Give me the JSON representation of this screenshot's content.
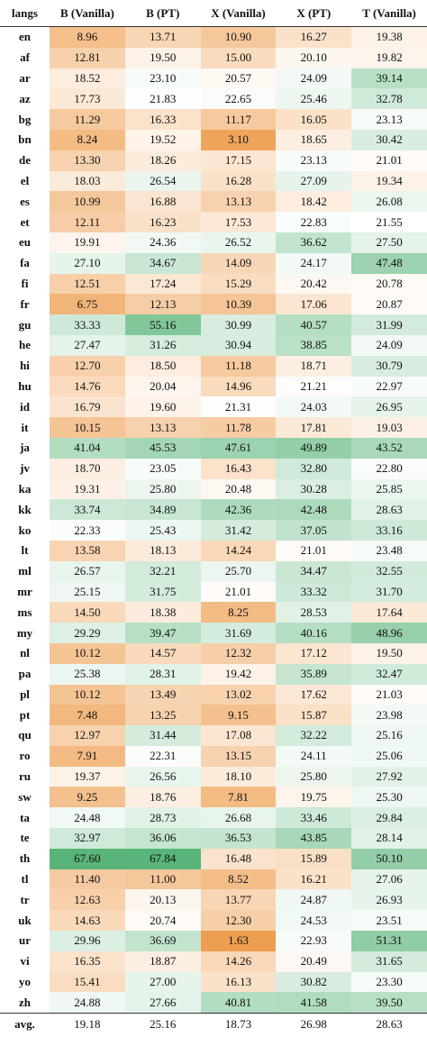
{
  "table": {
    "header": [
      "langs",
      "B (Vanilla)",
      "B (PT)",
      "X (Vanilla)",
      "X (PT)",
      "T (Vanilla)"
    ],
    "rows": [
      [
        "en",
        "8.96",
        "13.71",
        "10.90",
        "16.27",
        "19.38"
      ],
      [
        "af",
        "12.81",
        "19.50",
        "15.00",
        "20.10",
        "19.82"
      ],
      [
        "ar",
        "18.52",
        "23.10",
        "20.57",
        "24.09",
        "39.14"
      ],
      [
        "az",
        "17.73",
        "21.83",
        "22.65",
        "25.46",
        "32.78"
      ],
      [
        "bg",
        "11.29",
        "16.33",
        "11.17",
        "16.05",
        "23.13"
      ],
      [
        "bn",
        "8.24",
        "19.52",
        "3.10",
        "18.65",
        "30.42"
      ],
      [
        "de",
        "13.30",
        "18.26",
        "17.15",
        "23.13",
        "21.01"
      ],
      [
        "el",
        "18.03",
        "26.54",
        "16.28",
        "27.09",
        "19.34"
      ],
      [
        "es",
        "10.99",
        "16.88",
        "13.13",
        "18.42",
        "26.08"
      ],
      [
        "et",
        "12.11",
        "16.23",
        "17.53",
        "22.83",
        "21.55"
      ],
      [
        "eu",
        "19.91",
        "24.36",
        "26.52",
        "36.62",
        "27.50"
      ],
      [
        "fa",
        "27.10",
        "34.67",
        "14.09",
        "24.17",
        "47.48"
      ],
      [
        "fi",
        "12.51",
        "17.24",
        "15.29",
        "20.42",
        "20.78"
      ],
      [
        "fr",
        "6.75",
        "12.13",
        "10.39",
        "17.06",
        "20.87"
      ],
      [
        "gu",
        "33.33",
        "55.16",
        "30.99",
        "40.57",
        "31.99"
      ],
      [
        "he",
        "27.47",
        "31.26",
        "30.94",
        "38.85",
        "24.09"
      ],
      [
        "hi",
        "12.70",
        "18.50",
        "11.18",
        "18.71",
        "30.79"
      ],
      [
        "hu",
        "14.76",
        "20.04",
        "14.96",
        "21.21",
        "22.97"
      ],
      [
        "id",
        "16.79",
        "19.60",
        "21.31",
        "24.03",
        "26.95"
      ],
      [
        "it",
        "10.15",
        "13.13",
        "11.78",
        "17.81",
        "19.03"
      ],
      [
        "ja",
        "41.04",
        "45.53",
        "47.61",
        "49.89",
        "43.52"
      ],
      [
        "jv",
        "18.70",
        "23.05",
        "16.43",
        "32.80",
        "22.80"
      ],
      [
        "ka",
        "19.31",
        "25.80",
        "20.48",
        "30.28",
        "25.85"
      ],
      [
        "kk",
        "33.74",
        "34.89",
        "42.36",
        "42.48",
        "28.63"
      ],
      [
        "ko",
        "22.33",
        "25.43",
        "31.42",
        "37.05",
        "33.16"
      ],
      [
        "lt",
        "13.58",
        "18.13",
        "14.24",
        "21.01",
        "23.48"
      ],
      [
        "ml",
        "26.57",
        "32.21",
        "25.70",
        "34.47",
        "32.55"
      ],
      [
        "mr",
        "25.15",
        "31.75",
        "21.01",
        "33.32",
        "31.70"
      ],
      [
        "ms",
        "14.50",
        "18.38",
        "8.25",
        "28.53",
        "17.64"
      ],
      [
        "my",
        "29.29",
        "39.47",
        "31.69",
        "40.16",
        "48.96"
      ],
      [
        "nl",
        "10.12",
        "14.57",
        "12.32",
        "17.12",
        "19.50"
      ],
      [
        "pa",
        "25.38",
        "28.31",
        "19.42",
        "35.89",
        "32.47"
      ],
      [
        "pl",
        "10.12",
        "13.49",
        "13.02",
        "17.62",
        "21.03"
      ],
      [
        "pt",
        "7.48",
        "13.25",
        "9.15",
        "15.87",
        "23.98"
      ],
      [
        "qu",
        "12.97",
        "31.44",
        "17.08",
        "32.22",
        "25.16"
      ],
      [
        "ro",
        "7.91",
        "22.31",
        "13.15",
        "24.11",
        "25.06"
      ],
      [
        "ru",
        "19.37",
        "26.56",
        "18.10",
        "25.80",
        "27.92"
      ],
      [
        "sw",
        "9.25",
        "18.76",
        "7.81",
        "19.75",
        "25.30"
      ],
      [
        "ta",
        "24.48",
        "28.73",
        "26.68",
        "33.46",
        "29.84"
      ],
      [
        "te",
        "32.97",
        "36.06",
        "36.53",
        "43.85",
        "28.14"
      ],
      [
        "th",
        "67.60",
        "67.84",
        "16.48",
        "15.89",
        "50.10"
      ],
      [
        "tl",
        "11.40",
        "11.00",
        "8.52",
        "16.21",
        "27.06"
      ],
      [
        "tr",
        "12.63",
        "20.13",
        "13.77",
        "24.87",
        "26.93"
      ],
      [
        "uk",
        "14.63",
        "20.74",
        "12.30",
        "24.53",
        "23.51"
      ],
      [
        "ur",
        "29.96",
        "36.69",
        "1.63",
        "22.93",
        "51.31"
      ],
      [
        "vi",
        "16.35",
        "18.87",
        "14.26",
        "20.49",
        "31.65"
      ],
      [
        "yo",
        "15.41",
        "27.00",
        "16.13",
        "30.82",
        "23.30"
      ],
      [
        "zh",
        "24.88",
        "27.66",
        "40.81",
        "41.58",
        "39.50"
      ]
    ],
    "footer": [
      "avg.",
      "19.18",
      "25.16",
      "18.73",
      "26.98",
      "28.63"
    ]
  }
}
